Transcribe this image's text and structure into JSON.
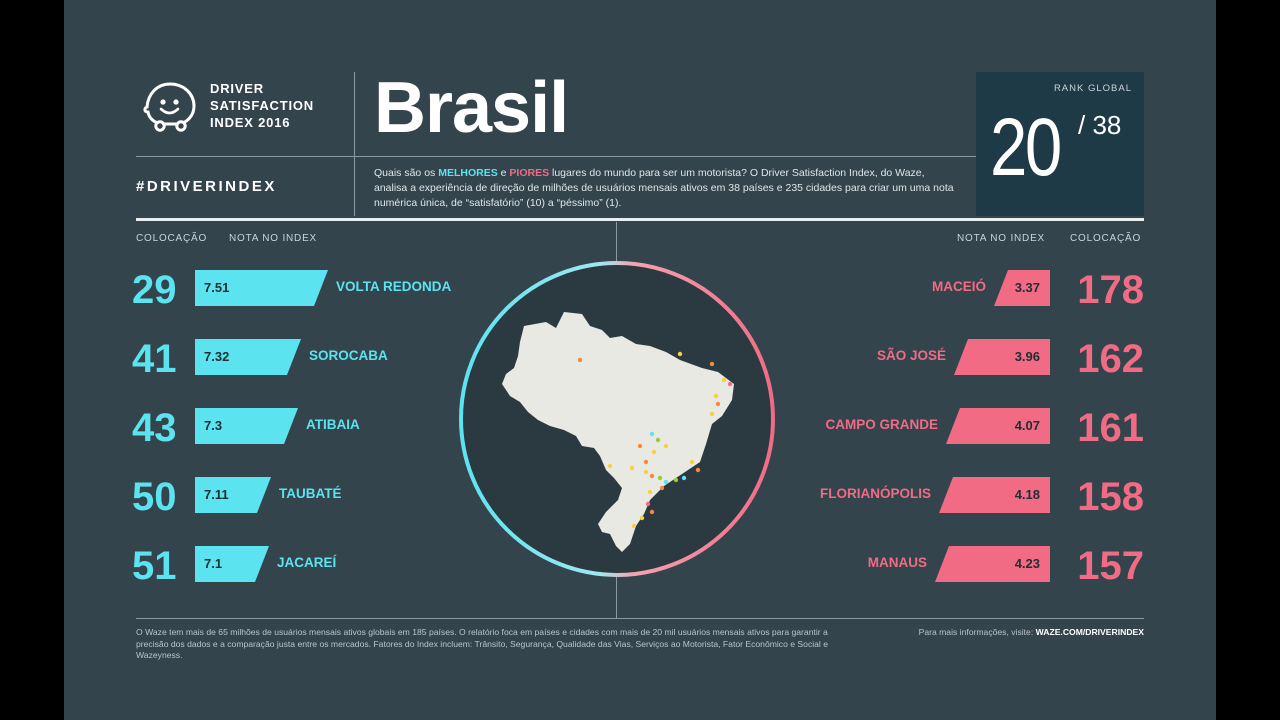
{
  "header": {
    "logo_lines": [
      "DRIVER",
      "SATISFACTION",
      "INDEX 2016"
    ],
    "hashtag": "#DRIVERINDEX",
    "title": "Brasil",
    "description": {
      "part1": "Quais são os ",
      "best_word": "MELHORES",
      "part2": " e ",
      "worst_word": "PIORES",
      "part3": " lugares do mundo para ser um motorista? O Driver Satisfaction Index, do Waze, analisa a experiência de direção de milhões de usuários mensais ativos em 38 países e 235 cidades para criar um uma nota numérica única, de “satisfatório” (10) a “péssimo” (1)."
    },
    "rank_label": "RANK GLOBAL",
    "rank_value": "20",
    "rank_total": "/ 38"
  },
  "columns": {
    "left_rank": "COLOCAÇÃO",
    "left_score": "NOTA NO INDEX",
    "right_score": "NOTA NO INDEX",
    "right_rank": "COLOCAÇÃO"
  },
  "colors": {
    "best": "#5ce3f0",
    "worst": "#f16b85",
    "background": "#34444c",
    "rank_box": "#1f3a47"
  },
  "chart_data": [
    {
      "type": "bar",
      "group": "melhores",
      "categories": [
        "VOLTA REDONDA",
        "SOROCABA",
        "ATIBAIA",
        "TAUBATÉ",
        "JACAREÍ"
      ],
      "values": [
        7.51,
        7.32,
        7.3,
        7.11,
        7.1
      ],
      "value_labels": [
        "7.51",
        "7.32",
        "7.3",
        "7.11",
        "7.1"
      ],
      "ranks": [
        "29",
        "41",
        "43",
        "50",
        "51"
      ]
    },
    {
      "type": "bar",
      "group": "piores",
      "categories": [
        "MACEIÓ",
        "SÃO JOSÉ",
        "CAMPO GRANDE",
        "FLORIANÓPOLIS",
        "MANAUS"
      ],
      "values": [
        3.37,
        3.96,
        4.07,
        4.18,
        4.23
      ],
      "value_labels": [
        "3.37",
        "3.96",
        "4.07",
        "4.18",
        "4.23"
      ],
      "ranks": [
        "178",
        "162",
        "161",
        "158",
        "157"
      ]
    }
  ],
  "map": {
    "icon": "brazil-map-icon",
    "ring_colors": [
      "#5ce3f0",
      "#f16b85"
    ]
  },
  "footer": {
    "text": "O Waze tem mais de 65 milhões de usuários mensais ativos globais em 185 países. O relatório foca em países e cidades com mais de 20 mil usuários mensais ativos para garantir a precisão dos dados e a comparação justa entre os mercados. Fatores do Index incluem: Trânsito, Segurança, Qualidade das Vias, Serviços ao Motorista, Fator Econômico e Social e Wazeyness.",
    "info_label": "Para mais informações, visite: ",
    "info_link": "WAZE.COM/DRIVERINDEX"
  }
}
